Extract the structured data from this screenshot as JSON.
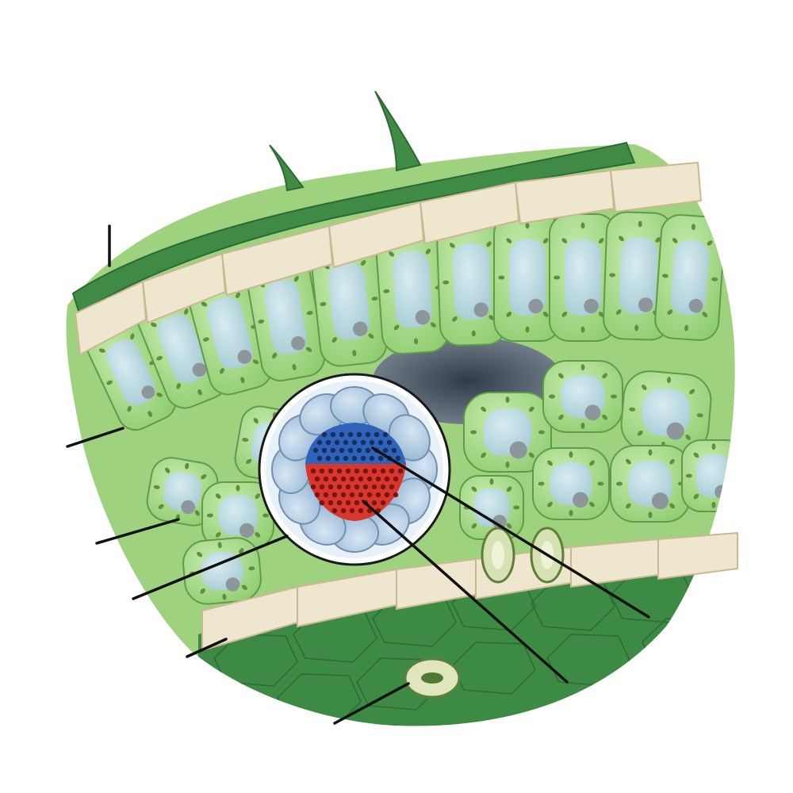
{
  "diagram": {
    "description_visible_text": "",
    "colors": {
      "background": "#ffffff",
      "cuticle": "#3f8a45",
      "cuticle_dark": "#2c6b33",
      "epidermis_cell": "#efe6cf",
      "epidermis_edge": "#c9b991",
      "mesophyll_cell": "#a9d98c",
      "mesophyll_edge": "#5f9b4a",
      "vacuole": "#b9d8df",
      "chloroplast": "#5f8f3f",
      "nucleus": "#8d969a",
      "air_space": "#4a5662",
      "lower_epidermis_surface": "#3d8a44",
      "bundle_sheath": "#a8c6e0",
      "xylem": "#2f62b8",
      "phloem": "#d8372e",
      "guard_cell": "#d6e2b4",
      "leader_line": "#111111"
    },
    "structures": [
      {
        "name": "trichome"
      },
      {
        "name": "cuticle"
      },
      {
        "name": "upper-epidermis"
      },
      {
        "name": "palisade-mesophyll"
      },
      {
        "name": "spongy-mesophyll"
      },
      {
        "name": "air-space"
      },
      {
        "name": "vascular-bundle"
      },
      {
        "name": "bundle-sheath"
      },
      {
        "name": "xylem"
      },
      {
        "name": "phloem"
      },
      {
        "name": "lower-epidermis"
      },
      {
        "name": "guard-cells"
      },
      {
        "name": "stoma"
      }
    ],
    "leader_lines": [
      {
        "name": "leader-cuticle"
      },
      {
        "name": "leader-palisade"
      },
      {
        "name": "leader-spongy"
      },
      {
        "name": "leader-bundle-sheath"
      },
      {
        "name": "leader-lower-epidermis"
      },
      {
        "name": "leader-stoma"
      },
      {
        "name": "leader-xylem"
      },
      {
        "name": "leader-phloem"
      }
    ]
  }
}
